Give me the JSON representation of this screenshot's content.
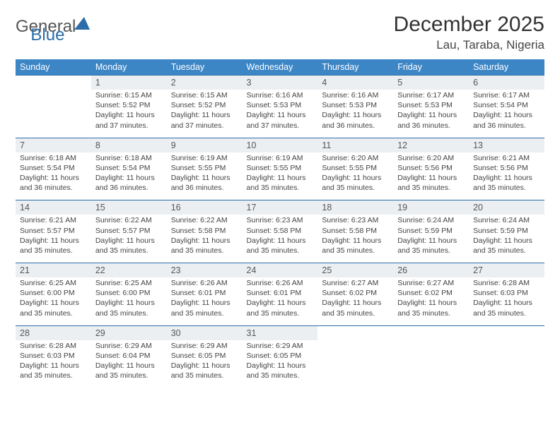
{
  "logo": {
    "text_general": "General",
    "text_blue": "Blue"
  },
  "title": "December 2025",
  "location": "Lau, Taraba, Nigeria",
  "colors": {
    "header_bg": "#3d86c6",
    "day_num_bg": "#eceff1",
    "border": "#2c6ca8",
    "logo_blue": "#2c6ca8",
    "text": "#333333"
  },
  "day_headers": [
    "Sunday",
    "Monday",
    "Tuesday",
    "Wednesday",
    "Thursday",
    "Friday",
    "Saturday"
  ],
  "weeks": [
    {
      "nums": [
        "",
        "1",
        "2",
        "3",
        "4",
        "5",
        "6"
      ],
      "cells": [
        null,
        {
          "sunrise": "6:15 AM",
          "sunset": "5:52 PM",
          "daylight": "11 hours and 37 minutes."
        },
        {
          "sunrise": "6:15 AM",
          "sunset": "5:52 PM",
          "daylight": "11 hours and 37 minutes."
        },
        {
          "sunrise": "6:16 AM",
          "sunset": "5:53 PM",
          "daylight": "11 hours and 37 minutes."
        },
        {
          "sunrise": "6:16 AM",
          "sunset": "5:53 PM",
          "daylight": "11 hours and 36 minutes."
        },
        {
          "sunrise": "6:17 AM",
          "sunset": "5:53 PM",
          "daylight": "11 hours and 36 minutes."
        },
        {
          "sunrise": "6:17 AM",
          "sunset": "5:54 PM",
          "daylight": "11 hours and 36 minutes."
        }
      ]
    },
    {
      "nums": [
        "7",
        "8",
        "9",
        "10",
        "11",
        "12",
        "13"
      ],
      "cells": [
        {
          "sunrise": "6:18 AM",
          "sunset": "5:54 PM",
          "daylight": "11 hours and 36 minutes."
        },
        {
          "sunrise": "6:18 AM",
          "sunset": "5:54 PM",
          "daylight": "11 hours and 36 minutes."
        },
        {
          "sunrise": "6:19 AM",
          "sunset": "5:55 PM",
          "daylight": "11 hours and 36 minutes."
        },
        {
          "sunrise": "6:19 AM",
          "sunset": "5:55 PM",
          "daylight": "11 hours and 35 minutes."
        },
        {
          "sunrise": "6:20 AM",
          "sunset": "5:55 PM",
          "daylight": "11 hours and 35 minutes."
        },
        {
          "sunrise": "6:20 AM",
          "sunset": "5:56 PM",
          "daylight": "11 hours and 35 minutes."
        },
        {
          "sunrise": "6:21 AM",
          "sunset": "5:56 PM",
          "daylight": "11 hours and 35 minutes."
        }
      ]
    },
    {
      "nums": [
        "14",
        "15",
        "16",
        "17",
        "18",
        "19",
        "20"
      ],
      "cells": [
        {
          "sunrise": "6:21 AM",
          "sunset": "5:57 PM",
          "daylight": "11 hours and 35 minutes."
        },
        {
          "sunrise": "6:22 AM",
          "sunset": "5:57 PM",
          "daylight": "11 hours and 35 minutes."
        },
        {
          "sunrise": "6:22 AM",
          "sunset": "5:58 PM",
          "daylight": "11 hours and 35 minutes."
        },
        {
          "sunrise": "6:23 AM",
          "sunset": "5:58 PM",
          "daylight": "11 hours and 35 minutes."
        },
        {
          "sunrise": "6:23 AM",
          "sunset": "5:58 PM",
          "daylight": "11 hours and 35 minutes."
        },
        {
          "sunrise": "6:24 AM",
          "sunset": "5:59 PM",
          "daylight": "11 hours and 35 minutes."
        },
        {
          "sunrise": "6:24 AM",
          "sunset": "5:59 PM",
          "daylight": "11 hours and 35 minutes."
        }
      ]
    },
    {
      "nums": [
        "21",
        "22",
        "23",
        "24",
        "25",
        "26",
        "27"
      ],
      "cells": [
        {
          "sunrise": "6:25 AM",
          "sunset": "6:00 PM",
          "daylight": "11 hours and 35 minutes."
        },
        {
          "sunrise": "6:25 AM",
          "sunset": "6:00 PM",
          "daylight": "11 hours and 35 minutes."
        },
        {
          "sunrise": "6:26 AM",
          "sunset": "6:01 PM",
          "daylight": "11 hours and 35 minutes."
        },
        {
          "sunrise": "6:26 AM",
          "sunset": "6:01 PM",
          "daylight": "11 hours and 35 minutes."
        },
        {
          "sunrise": "6:27 AM",
          "sunset": "6:02 PM",
          "daylight": "11 hours and 35 minutes."
        },
        {
          "sunrise": "6:27 AM",
          "sunset": "6:02 PM",
          "daylight": "11 hours and 35 minutes."
        },
        {
          "sunrise": "6:28 AM",
          "sunset": "6:03 PM",
          "daylight": "11 hours and 35 minutes."
        }
      ]
    },
    {
      "nums": [
        "28",
        "29",
        "30",
        "31",
        "",
        "",
        ""
      ],
      "cells": [
        {
          "sunrise": "6:28 AM",
          "sunset": "6:03 PM",
          "daylight": "11 hours and 35 minutes."
        },
        {
          "sunrise": "6:29 AM",
          "sunset": "6:04 PM",
          "daylight": "11 hours and 35 minutes."
        },
        {
          "sunrise": "6:29 AM",
          "sunset": "6:05 PM",
          "daylight": "11 hours and 35 minutes."
        },
        {
          "sunrise": "6:29 AM",
          "sunset": "6:05 PM",
          "daylight": "11 hours and 35 minutes."
        },
        null,
        null,
        null
      ]
    }
  ],
  "labels": {
    "sunrise": "Sunrise: ",
    "sunset": "Sunset: ",
    "daylight": "Daylight: "
  }
}
